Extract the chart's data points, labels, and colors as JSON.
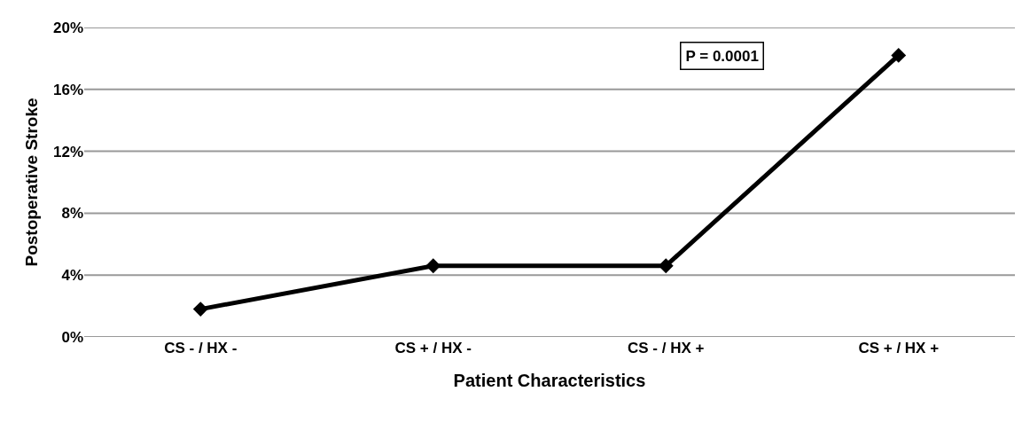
{
  "chart_data": {
    "type": "line",
    "xlabel": "Patient Characteristics",
    "ylabel": "Postoperative Stroke",
    "categories": [
      "CS - / HX -",
      "CS + / HX -",
      "CS - / HX +",
      "CS + / HX +"
    ],
    "series": [
      {
        "color": "#000000",
        "values": [
          1.8,
          4.6,
          4.6,
          18.2
        ]
      }
    ],
    "ylim": [
      0,
      20
    ],
    "yticks": [
      {
        "value": 0,
        "label": "0%"
      },
      {
        "value": 4,
        "label": "4%"
      },
      {
        "value": 8,
        "label": "8%"
      },
      {
        "value": 12,
        "label": "12%"
      },
      {
        "value": 16,
        "label": "16%"
      },
      {
        "value": 20,
        "label": "20%"
      }
    ],
    "grid": "y",
    "marker": "diamond",
    "line_style": "solid",
    "annotations": [
      "P = 0.0001"
    ]
  }
}
